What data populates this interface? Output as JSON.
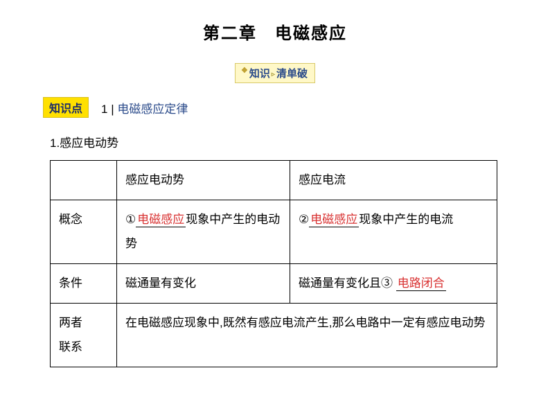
{
  "title": "第二章　电磁感应",
  "sub_badge": {
    "left": "知识",
    "right": "清单破",
    "icon": "❖",
    "sep": "▹"
  },
  "kp": {
    "badge": "知识点",
    "num": "1 | ",
    "title": "电磁感应定律"
  },
  "section": "1.感应电动势",
  "table": {
    "hdr_col2": "感应电动势",
    "hdr_col3": "感应电流",
    "r1_c1": "概念",
    "r1_c2_pre": "①",
    "r1_c2_blank": "电磁感应",
    "r1_c2_post": "现象中产生的电动势",
    "r1_c3_pre": "②",
    "r1_c3_blank": "电磁感应",
    "r1_c3_post": "现象中产生的电流",
    "r2_c1": "条件",
    "r2_c2": "磁通量有变化",
    "r2_c3_pre": "磁通量有变化且③",
    "r2_c3_blank": "电路闭合",
    "r3_c1a": "两者",
    "r3_c1b": "联系",
    "r3_c23": "在电磁感应现象中,既然有感应电流产生,那么电路中一定有感应电动势"
  },
  "colors": {
    "accent_blue": "#2a4a8a",
    "accent_red": "#d83030",
    "badge_yellow": "#ffe000",
    "sub_badge_bg": "#fff8c8",
    "border": "#000000"
  }
}
